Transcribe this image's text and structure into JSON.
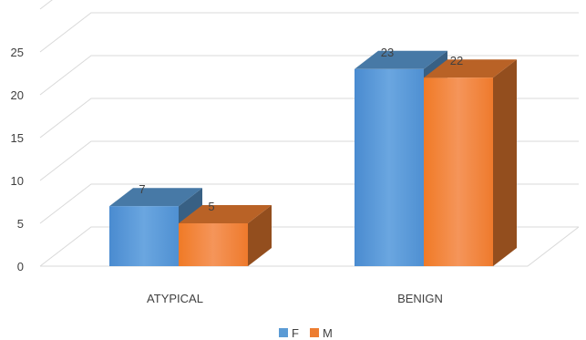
{
  "chart_data": {
    "type": "bar",
    "three_d": true,
    "categories": [
      "ATYPICAL",
      "BENIGN"
    ],
    "series": [
      {
        "name": "F",
        "values": [
          7,
          23
        ],
        "color": "#5b9bd5"
      },
      {
        "name": "M",
        "values": [
          5,
          22
        ],
        "color": "#ed7d31"
      }
    ],
    "ylim": [
      0,
      30
    ],
    "yticks": [
      "0",
      "5",
      "10",
      "15",
      "20",
      "25"
    ],
    "grid": true,
    "legend": "bottom",
    "data_labels": true
  }
}
